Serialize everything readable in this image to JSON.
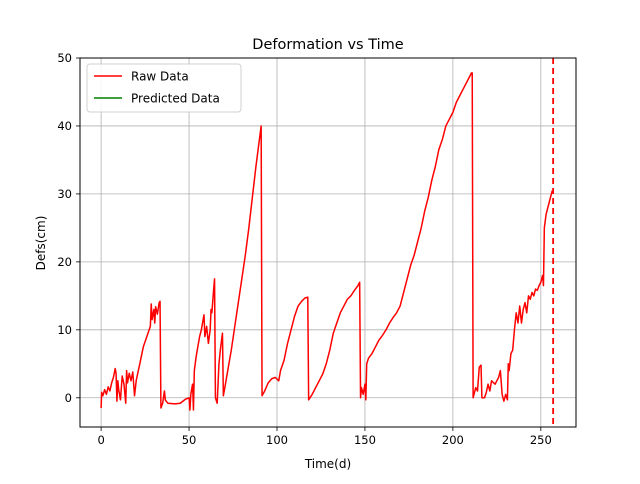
{
  "chart_data": {
    "type": "line",
    "title": "Deformation vs Time",
    "xlabel": "Time(d)",
    "ylabel": "Defs(cm)",
    "xlim": [
      -12,
      270
    ],
    "ylim": [
      -4.3,
      50
    ],
    "xticks": [
      0,
      50,
      100,
      150,
      200,
      250
    ],
    "yticks": [
      0,
      10,
      20,
      30,
      40,
      50
    ],
    "grid": true,
    "legend_position": "top-left",
    "series": [
      {
        "name": "Raw Data",
        "color": "#ff0000",
        "points": [
          [
            0,
            -1.5
          ],
          [
            0.3,
            0.8
          ],
          [
            1,
            0.3
          ],
          [
            2,
            1.2
          ],
          [
            3,
            0.5
          ],
          [
            4,
            1.6
          ],
          [
            5,
            1.0
          ],
          [
            6,
            2.2
          ],
          [
            7,
            3.0
          ],
          [
            8,
            4.3
          ],
          [
            8.5,
            3.6
          ],
          [
            9,
            -0.5
          ],
          [
            9.5,
            2.5
          ],
          [
            10,
            1.2
          ],
          [
            11,
            -0.3
          ],
          [
            12,
            3.2
          ],
          [
            13,
            2.0
          ],
          [
            14,
            -0.8
          ],
          [
            14.5,
            4.0
          ],
          [
            15,
            2.2
          ],
          [
            16,
            3.6
          ],
          [
            17,
            2.5
          ],
          [
            18,
            3.8
          ],
          [
            19,
            0.3
          ],
          [
            20,
            2.6
          ],
          [
            22,
            5.0
          ],
          [
            24,
            7.5
          ],
          [
            26,
            9.0
          ],
          [
            28,
            10.5
          ],
          [
            28.5,
            13.8
          ],
          [
            29,
            11.5
          ],
          [
            30,
            13.0
          ],
          [
            30.5,
            11.0
          ],
          [
            31,
            13.4
          ],
          [
            32,
            12.3
          ],
          [
            33,
            14.0
          ],
          [
            33.5,
            14.2
          ],
          [
            34,
            -1.5
          ],
          [
            35,
            -0.8
          ],
          [
            36,
            1.0
          ],
          [
            36.5,
            -0.3
          ],
          [
            37,
            -0.5
          ],
          [
            38,
            -0.8
          ],
          [
            42,
            -0.9
          ],
          [
            45,
            -0.8
          ],
          [
            48,
            -0.2
          ],
          [
            50,
            0.0
          ],
          [
            50.5,
            -1.8
          ],
          [
            51,
            0.5
          ],
          [
            52,
            2.0
          ],
          [
            52.5,
            -1.8
          ],
          [
            53,
            4.0
          ],
          [
            54,
            6.0
          ],
          [
            55,
            7.5
          ],
          [
            56,
            9.0
          ],
          [
            57,
            10.0
          ],
          [
            58,
            11.5
          ],
          [
            58.5,
            12.2
          ],
          [
            59,
            9.0
          ],
          [
            60,
            10.5
          ],
          [
            61,
            8.0
          ],
          [
            62,
            10.0
          ],
          [
            62.5,
            13.0
          ],
          [
            63,
            12.5
          ],
          [
            64,
            16.0
          ],
          [
            64.5,
            17.5
          ],
          [
            65,
            0.0
          ],
          [
            66,
            -0.8
          ],
          [
            67,
            5.0
          ],
          [
            68,
            7.5
          ],
          [
            69,
            9.5
          ],
          [
            69.5,
            0.3
          ],
          [
            70,
            1.0
          ],
          [
            72,
            4.0
          ],
          [
            74,
            7.0
          ],
          [
            76,
            10.5
          ],
          [
            78,
            14.0
          ],
          [
            80,
            17.5
          ],
          [
            82,
            21.0
          ],
          [
            84,
            25.0
          ],
          [
            86,
            29.5
          ],
          [
            88,
            34.0
          ],
          [
            90,
            38.0
          ],
          [
            91,
            40.0
          ],
          [
            91.5,
            0.3
          ],
          [
            93,
            1.0
          ],
          [
            95,
            2.2
          ],
          [
            97,
            2.8
          ],
          [
            99,
            3.0
          ],
          [
            101,
            2.5
          ],
          [
            102,
            4.0
          ],
          [
            104,
            5.5
          ],
          [
            106,
            8.0
          ],
          [
            108,
            10.0
          ],
          [
            110,
            12.0
          ],
          [
            112,
            13.5
          ],
          [
            114,
            14.2
          ],
          [
            116,
            14.7
          ],
          [
            117.5,
            14.8
          ],
          [
            118,
            -0.3
          ],
          [
            120,
            0.5
          ],
          [
            122,
            1.5
          ],
          [
            124,
            2.5
          ],
          [
            126,
            3.5
          ],
          [
            128,
            5.0
          ],
          [
            130,
            7.0
          ],
          [
            132,
            9.5
          ],
          [
            134,
            11.0
          ],
          [
            136,
            12.5
          ],
          [
            138,
            13.5
          ],
          [
            140,
            14.5
          ],
          [
            142,
            15.0
          ],
          [
            144,
            15.8
          ],
          [
            146,
            16.5
          ],
          [
            147,
            17.0
          ],
          [
            147.5,
            0.0
          ],
          [
            148,
            1.5
          ],
          [
            149,
            0.5
          ],
          [
            150,
            2.0
          ],
          [
            150.5,
            -0.3
          ],
          [
            151,
            5.0
          ],
          [
            152,
            5.8
          ],
          [
            154,
            6.5
          ],
          [
            156,
            7.5
          ],
          [
            158,
            8.5
          ],
          [
            160,
            9.2
          ],
          [
            162,
            10.0
          ],
          [
            164,
            11.0
          ],
          [
            166,
            11.8
          ],
          [
            168,
            12.5
          ],
          [
            170,
            13.5
          ],
          [
            172,
            15.5
          ],
          [
            174,
            17.5
          ],
          [
            176,
            19.5
          ],
          [
            178,
            21.0
          ],
          [
            180,
            23.0
          ],
          [
            182,
            25.0
          ],
          [
            184,
            27.5
          ],
          [
            186,
            29.5
          ],
          [
            188,
            32.0
          ],
          [
            190,
            34.0
          ],
          [
            192,
            36.5
          ],
          [
            194,
            38.0
          ],
          [
            196,
            40.0
          ],
          [
            198,
            41.0
          ],
          [
            200,
            42.0
          ],
          [
            202,
            43.5
          ],
          [
            204,
            44.5
          ],
          [
            206,
            45.5
          ],
          [
            208,
            46.5
          ],
          [
            210,
            47.5
          ],
          [
            210.5,
            47.8
          ],
          [
            211,
            47.8
          ],
          [
            211.5,
            0.0
          ],
          [
            213,
            1.5
          ],
          [
            214,
            1.0
          ],
          [
            215,
            4.5
          ],
          [
            216,
            4.8
          ],
          [
            216.5,
            0.0
          ],
          [
            218,
            0.0
          ],
          [
            219,
            0.8
          ],
          [
            220,
            2.0
          ],
          [
            221,
            1.0
          ],
          [
            222,
            2.5
          ],
          [
            224,
            2.0
          ],
          [
            226,
            3.0
          ],
          [
            227,
            4.0
          ],
          [
            228,
            0.5
          ],
          [
            229,
            -0.5
          ],
          [
            230,
            0.5
          ],
          [
            231,
            -0.3
          ],
          [
            231.5,
            5.0
          ],
          [
            232,
            4.0
          ],
          [
            233,
            6.5
          ],
          [
            234,
            7.0
          ],
          [
            235,
            10.0
          ],
          [
            236,
            12.5
          ],
          [
            237,
            11.0
          ],
          [
            238,
            13.5
          ],
          [
            239,
            11.0
          ],
          [
            240,
            13.0
          ],
          [
            241,
            14.0
          ],
          [
            242,
            12.5
          ],
          [
            243,
            15.0
          ],
          [
            244,
            14.5
          ],
          [
            245,
            15.5
          ],
          [
            246,
            15.0
          ],
          [
            247,
            16.0
          ],
          [
            248,
            15.8
          ],
          [
            249,
            16.5
          ],
          [
            250,
            17.0
          ],
          [
            251,
            18.0
          ],
          [
            251.5,
            16.5
          ],
          [
            252,
            25.0
          ],
          [
            253,
            27.0
          ],
          [
            254,
            28.0
          ],
          [
            255,
            29.0
          ],
          [
            256,
            30.0
          ],
          [
            256.5,
            30.5
          ]
        ]
      },
      {
        "name": "Predicted Data",
        "color": "#008000",
        "points": []
      }
    ],
    "vertical_marker": {
      "x": 257,
      "color": "#ff0000",
      "style": "dashed"
    }
  }
}
